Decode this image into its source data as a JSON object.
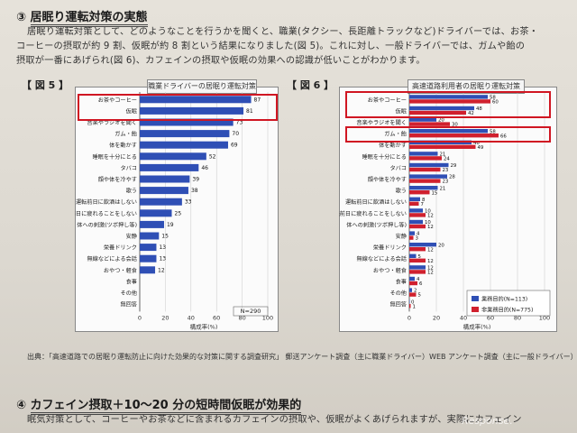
{
  "section3": {
    "number": "③",
    "title": "居眠り運転対策の実態",
    "para": [
      "居眠り運転対策として、どのようなことを行うかを聞くと、職業(タクシー、長距離トラックなど)ドライバーでは、お茶・",
      "コーヒーの摂取が約 9 割、仮眠が約 8 割という結果になりました(図 5)。これに対し、一般ドライバーでは、ガムや飴の",
      "摂取が一番にあげられ(図 6)、カフェインの摂取や仮眠の効果への認識が低いことがわかります。"
    ]
  },
  "fig5": {
    "label": "【 図 5 】",
    "title": "職業ドライバーの居眠り運転対策",
    "n_label": "N=290",
    "xlabel": "構成率(%)",
    "chart_data": {
      "type": "bar",
      "orientation": "horizontal",
      "title": "職業ドライバーの居眠り運転対策",
      "xlabel": "構成率(%)",
      "xlim": [
        0,
        100
      ],
      "xticks": [
        "0",
        "20",
        "40",
        "60",
        "80",
        "100"
      ],
      "categories": [
        "お茶やコーヒー",
        "仮眠",
        "音楽やラジオを聞く",
        "ガム・飴",
        "体を動かす",
        "睡眠を十分にとる",
        "タバコ",
        "顔や体を冷やす",
        "歌う",
        "運転前日に飲酒はしない",
        "運転前日に疲れることをしない",
        "体への刺激(ツボ押し等)",
        "安静",
        "栄養ドリンク",
        "無線などによる会話",
        "おやつ・軽食",
        "食事",
        "その他",
        "無回答"
      ],
      "values": [
        87,
        81,
        73,
        70,
        69,
        52,
        46,
        39,
        38,
        33,
        25,
        19,
        15,
        13,
        13,
        12,
        null,
        null,
        null
      ]
    }
  },
  "fig6": {
    "label": "【 図 6 】",
    "title": "高速道路利用者の居眠り運転対策",
    "xlabel": "構成率(%)",
    "chart_data": {
      "type": "bar",
      "orientation": "horizontal",
      "title": "高速道路利用者の居眠り運転対策",
      "xlabel": "構成率(%)",
      "xlim": [
        0,
        100
      ],
      "xticks": [
        "0",
        "20",
        "40",
        "60",
        "80",
        "100"
      ],
      "categories": [
        "お茶やコーヒー",
        "仮眠",
        "音楽やラジオを聞く",
        "ガム・飴",
        "体を動かす",
        "睡眠を十分にとる",
        "タバコ",
        "顔や体を冷やす",
        "歌う",
        "運転前日に飲酒はしない",
        "運転前日に疲れることをしない",
        "体への刺激(ツボ押し等)",
        "安静",
        "栄養ドリンク",
        "無線などによる会話",
        "おやつ・軽食",
        "食事",
        "その他",
        "無回答"
      ],
      "series": [
        {
          "name": "業務目的(N=113)",
          "color": "#2f4fb5",
          "values": [
            58,
            48,
            20,
            58,
            46,
            21,
            29,
            28,
            21,
            8,
            10,
            10,
            4,
            20,
            5,
            12,
            4,
            2,
            0
          ]
        },
        {
          "name": "非業務目的(N=775)",
          "color": "#d0202e",
          "values": [
            60,
            42,
            30,
            66,
            49,
            24,
            23,
            23,
            15,
            7,
            12,
            12,
            3,
            12,
            12,
            12,
            6,
            5,
            1
          ]
        }
      ]
    }
  },
  "source": "出典：「高速道路での居眠り運転防止に向けた効果的な対策に関する調査研究」 郵送アンケート調査（主に職業ドライバー）WEB アンケート調査（主に一般ドライバー）",
  "section4": {
    "number": "④",
    "title": "カフェイン摂取＋10～20 分の短時間仮眠が効果的",
    "para": "眠気対策として、コーヒーやお茶などに含まれるカフェインの摂取や、仮眠がよくあげられますが、実際にカフェイン"
  },
  "watermark": "Response."
}
